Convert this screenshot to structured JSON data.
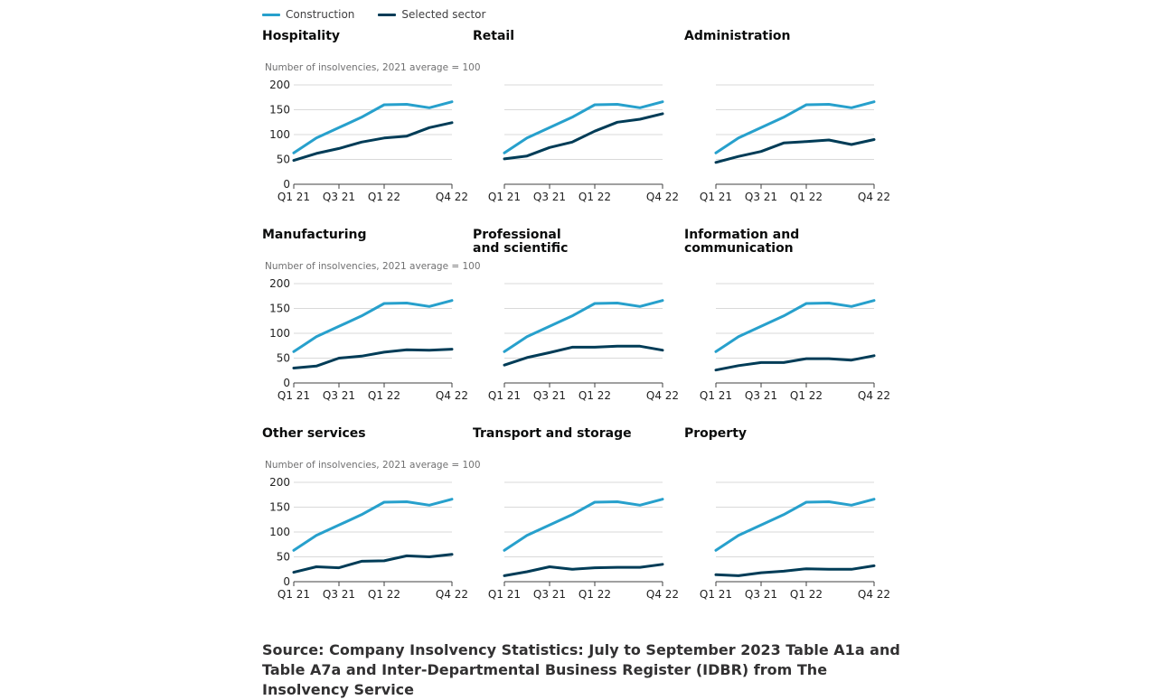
{
  "legend": {
    "construction_label": "Construction",
    "selected_label": "Selected sector"
  },
  "colors": {
    "construction": "#27a0cc",
    "selected": "#003c57",
    "gridline": "#d9d9d9",
    "axis": "#414042"
  },
  "source_text": "Source: Company Insolvency Statistics: July to September 2023 Table A1a and Table A7a and Inter-Departmental Business Register (IDBR) from The Insolvency Service",
  "chart_data": {
    "type": "line",
    "ylabel": "Number of insolvencies, 2021 average = 100",
    "ylim": [
      0,
      200
    ],
    "yticks": [
      0,
      50,
      100,
      150,
      200
    ],
    "x": [
      "Q1 21",
      "Q2 21",
      "Q3 21",
      "Q4 21",
      "Q1 22",
      "Q2 22",
      "Q3 22",
      "Q4 22"
    ],
    "xtick_labels": [
      "Q1 21",
      "Q3 21",
      "Q1 22",
      "Q4 22"
    ],
    "grid": true,
    "legend_position": "top-left",
    "construction": [
      63,
      93,
      114,
      135,
      160,
      161,
      154,
      166
    ],
    "panels": [
      {
        "title": "Hospitality",
        "values": [
          48,
          62,
          72,
          85,
          93,
          97,
          114,
          124
        ]
      },
      {
        "title": "Retail",
        "values": [
          51,
          57,
          74,
          85,
          107,
          125,
          131,
          142
        ]
      },
      {
        "title": "Administration",
        "values": [
          44,
          56,
          66,
          83,
          86,
          89,
          80,
          90
        ]
      },
      {
        "title": "Manufacturing",
        "values": [
          30,
          34,
          50,
          54,
          62,
          67,
          66,
          68
        ]
      },
      {
        "title": "Professional and scientific",
        "values": [
          36,
          51,
          61,
          72,
          72,
          74,
          74,
          66
        ]
      },
      {
        "title": "Information and communication",
        "values": [
          26,
          35,
          41,
          41,
          49,
          49,
          46,
          55
        ]
      },
      {
        "title": "Other services",
        "values": [
          19,
          30,
          28,
          41,
          42,
          52,
          50,
          55
        ]
      },
      {
        "title": "Transport and storage",
        "values": [
          12,
          20,
          30,
          25,
          28,
          29,
          29,
          35
        ]
      },
      {
        "title": "Property",
        "values": [
          14,
          12,
          18,
          21,
          26,
          25,
          25,
          32
        ]
      }
    ]
  }
}
